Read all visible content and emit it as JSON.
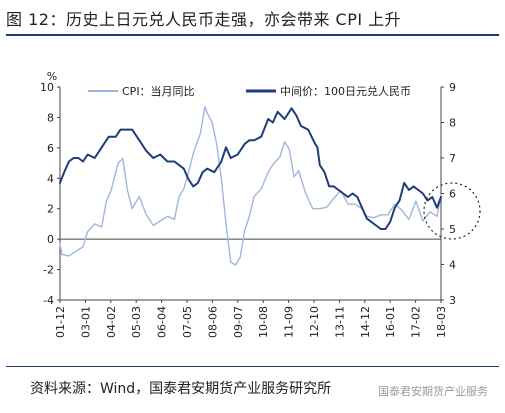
{
  "header": {
    "title": "图 12：历史上日元兑人民币走强，亦会带来 CPI 上升"
  },
  "footer": {
    "source": "资料来源：Wind，国泰君安期货产业服务研究所",
    "watermark": "国泰君安期货产业服务"
  },
  "chart_data": {
    "type": "line",
    "title": "",
    "xlabel": "",
    "ylabel": "",
    "left_unit_label": "%",
    "ylim_left": [
      -4,
      10
    ],
    "yticks_left": [
      -4,
      -2,
      0,
      2,
      4,
      6,
      8,
      10
    ],
    "ylim_right": [
      3,
      9
    ],
    "yticks_right": [
      3,
      4,
      5,
      6,
      7,
      8,
      9
    ],
    "xticks": [
      "01-12",
      "03-01",
      "04-02",
      "05-03",
      "06-04",
      "07-05",
      "08-06",
      "09-07",
      "10-08",
      "11-09",
      "12-10",
      "13-11",
      "14-12",
      "16-01",
      "17-02",
      "18-03"
    ],
    "legend_position": "top",
    "grid": false,
    "annotation": "dashed circle around the end of both series",
    "colors": {
      "cpi": "#9fb6dd",
      "jpy": "#1f3d7a"
    },
    "series": [
      {
        "name": "CPI：当月同比",
        "axis": "left",
        "x": [
          2001.92,
          2002.0,
          2002.3,
          2002.6,
          2002.9,
          2003.1,
          2003.4,
          2003.7,
          2003.9,
          2004.1,
          2004.4,
          2004.6,
          2004.8,
          2005.0,
          2005.3,
          2005.6,
          2005.9,
          2006.2,
          2006.5,
          2006.8,
          2007.0,
          2007.2,
          2007.4,
          2007.6,
          2007.8,
          2007.9,
          2008.1,
          2008.2,
          2008.4,
          2008.6,
          2008.8,
          2009.0,
          2009.2,
          2009.4,
          2009.6,
          2009.8,
          2010.0,
          2010.2,
          2010.5,
          2010.8,
          2011.0,
          2011.3,
          2011.5,
          2011.7,
          2011.9,
          2012.1,
          2012.4,
          2012.7,
          2013.0,
          2013.3,
          2013.6,
          2013.9,
          2014.2,
          2014.5,
          2014.8,
          2015.0,
          2015.3,
          2015.6,
          2015.9,
          2016.2,
          2016.5,
          2016.8,
          2017.1,
          2017.4,
          2017.7,
          2018.0,
          2018.17
        ],
        "values": [
          -0.3,
          -1.0,
          -1.1,
          -0.8,
          -0.5,
          0.5,
          1.0,
          0.8,
          2.5,
          3.2,
          5.0,
          5.3,
          3.2,
          2.0,
          2.8,
          1.6,
          0.9,
          1.2,
          1.5,
          1.3,
          2.8,
          3.3,
          4.4,
          5.6,
          6.5,
          6.9,
          8.7,
          8.3,
          7.7,
          6.3,
          4.0,
          1.0,
          -1.5,
          -1.7,
          -1.2,
          0.6,
          1.5,
          2.8,
          3.3,
          4.4,
          4.9,
          5.4,
          6.4,
          5.9,
          4.1,
          4.5,
          3.0,
          2.0,
          2.0,
          2.1,
          2.7,
          3.2,
          2.3,
          2.3,
          2.0,
          1.5,
          1.4,
          1.6,
          1.6,
          2.3,
          1.9,
          1.3,
          2.5,
          1.2,
          1.8,
          1.5,
          2.9
        ]
      },
      {
        "name": "中间价：100日元兑人民币",
        "axis": "right",
        "x": [
          2001.92,
          2002.1,
          2002.3,
          2002.5,
          2002.7,
          2002.9,
          2003.1,
          2003.4,
          2003.7,
          2004.0,
          2004.3,
          2004.5,
          2004.8,
          2005.0,
          2005.2,
          2005.4,
          2005.6,
          2005.9,
          2006.2,
          2006.5,
          2006.8,
          2007.0,
          2007.2,
          2007.4,
          2007.6,
          2007.8,
          2008.0,
          2008.2,
          2008.5,
          2008.8,
          2009.0,
          2009.2,
          2009.5,
          2009.8,
          2010.0,
          2010.2,
          2010.5,
          2010.8,
          2011.0,
          2011.2,
          2011.5,
          2011.8,
          2012.0,
          2012.2,
          2012.5,
          2012.8,
          2012.9,
          2013.0,
          2013.2,
          2013.4,
          2013.6,
          2013.8,
          2014.0,
          2014.2,
          2014.4,
          2014.6,
          2014.8,
          2015.0,
          2015.2,
          2015.4,
          2015.6,
          2015.8,
          2016.0,
          2016.2,
          2016.4,
          2016.6,
          2016.8,
          2017.0,
          2017.2,
          2017.4,
          2017.6,
          2017.8,
          2018.0,
          2018.17
        ],
        "values": [
          6.3,
          6.6,
          6.9,
          7.0,
          7.0,
          6.9,
          7.1,
          7.0,
          7.3,
          7.6,
          7.6,
          7.8,
          7.8,
          7.8,
          7.6,
          7.4,
          7.2,
          7.0,
          7.1,
          6.9,
          6.9,
          6.8,
          6.7,
          6.4,
          6.2,
          6.3,
          6.6,
          6.7,
          6.6,
          6.9,
          7.3,
          7.0,
          7.1,
          7.4,
          7.5,
          7.5,
          7.6,
          8.1,
          8.0,
          8.3,
          8.1,
          8.4,
          8.2,
          7.9,
          7.8,
          7.4,
          7.3,
          6.8,
          6.6,
          6.2,
          6.2,
          6.1,
          6.0,
          5.9,
          6.0,
          5.9,
          5.6,
          5.3,
          5.2,
          5.1,
          5.0,
          5.0,
          5.2,
          5.6,
          5.8,
          6.3,
          6.1,
          6.2,
          6.1,
          6.0,
          5.8,
          5.9,
          5.6,
          5.9
        ]
      }
    ]
  }
}
